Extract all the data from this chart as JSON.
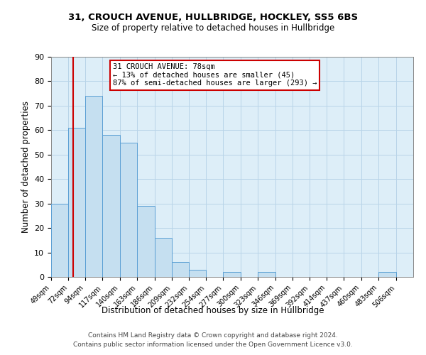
{
  "title1": "31, CROUCH AVENUE, HULLBRIDGE, HOCKLEY, SS5 6BS",
  "title2": "Size of property relative to detached houses in Hullbridge",
  "xlabel": "Distribution of detached houses by size in Hullbridge",
  "ylabel": "Number of detached properties",
  "bar_values": [
    30,
    61,
    74,
    58,
    55,
    29,
    16,
    6,
    3,
    0,
    2,
    0,
    2,
    0,
    0,
    0,
    0,
    0,
    0,
    2
  ],
  "bin_labels": [
    "49sqm",
    "72sqm",
    "94sqm",
    "117sqm",
    "140sqm",
    "163sqm",
    "186sqm",
    "209sqm",
    "232sqm",
    "254sqm",
    "277sqm",
    "300sqm",
    "323sqm",
    "346sqm",
    "369sqm",
    "392sqm",
    "414sqm",
    "437sqm",
    "460sqm",
    "483sqm",
    "506sqm"
  ],
  "bin_edges": [
    49,
    72,
    94,
    117,
    140,
    163,
    186,
    209,
    232,
    254,
    277,
    300,
    323,
    346,
    369,
    392,
    414,
    437,
    460,
    483,
    506
  ],
  "bar_color": "#c5dff0",
  "bar_edge_color": "#5a9fd4",
  "property_line_x": 78,
  "vline_color": "#cc0000",
  "ylim": [
    0,
    90
  ],
  "yticks": [
    0,
    10,
    20,
    30,
    40,
    50,
    60,
    70,
    80,
    90
  ],
  "annotation_text": "31 CROUCH AVENUE: 78sqm\n← 13% of detached houses are smaller (45)\n87% of semi-detached houses are larger (293) →",
  "annotation_box_color": "#ffffff",
  "annotation_box_edge_color": "#cc0000",
  "footer1": "Contains HM Land Registry data © Crown copyright and database right 2024.",
  "footer2": "Contains public sector information licensed under the Open Government Licence v3.0.",
  "bg_color": "#ddeef8",
  "grid_color": "#b8d4e8"
}
